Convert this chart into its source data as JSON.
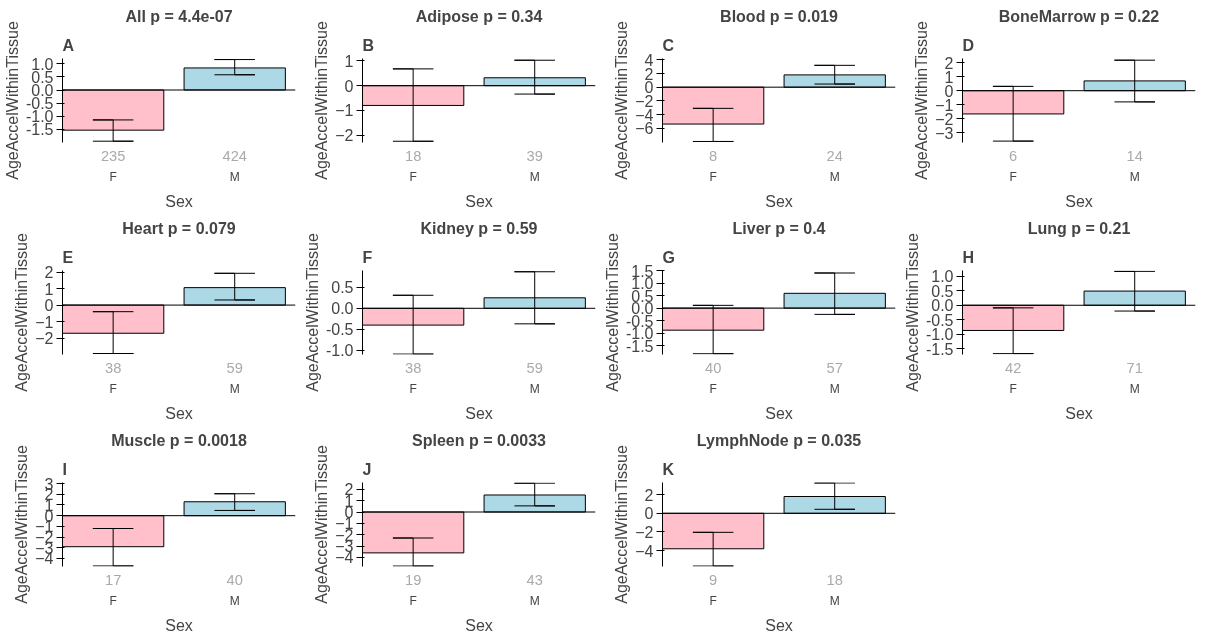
{
  "chart_data": [
    {
      "type": "bar",
      "title": "All p = 4.4e-07",
      "xlabel": "Sex",
      "ylabel": "AgeAccelWithinTissue",
      "categories": [
        "F",
        "M"
      ],
      "values": [
        -1.53,
        0.84
      ],
      "colors": [
        "#ffc0cb",
        "#add8e6"
      ],
      "errors": [
        [
          -1.95,
          -1.14
        ],
        [
          0.58,
          1.16
        ]
      ],
      "ylim": [
        -2.0,
        1.2
      ],
      "yticks": [
        {
          "value": -1.5,
          "label": "-1.5"
        },
        {
          "value": -1,
          "label": "-1.0"
        },
        {
          "value": -0.5,
          "label": "-0.5"
        },
        {
          "value": 0,
          "label": "0.0"
        },
        {
          "value": 0.5,
          "label": "0.5"
        },
        {
          "value": 1,
          "label": "1.0"
        }
      ],
      "ref_lines": [
        {
          "axis": "y",
          "value": 0
        }
      ],
      "annotations": [
        "A",
        "235",
        "424"
      ]
    },
    {
      "type": "bar",
      "title": "Adipose p = 0.34",
      "xlabel": "Sex",
      "ylabel": "AgeAccelWithinTissue",
      "categories": [
        "F",
        "M"
      ],
      "values": [
        -0.8,
        0.32
      ],
      "colors": [
        "#ffc0cb",
        "#add8e6"
      ],
      "errors": [
        [
          -2.25,
          0.68
        ],
        [
          -0.34,
          1.03
        ]
      ],
      "ylim": [
        -2.3,
        1.1
      ],
      "yticks": [
        -2,
        -1,
        0,
        1
      ],
      "ref_lines": [
        {
          "axis": "y",
          "value": 0
        }
      ],
      "annotations": [
        "B",
        "18",
        "39"
      ]
    },
    {
      "type": "bar",
      "title": "Blood p = 0.019",
      "xlabel": "Sex",
      "ylabel": "AgeAccelWithinTissue",
      "categories": [
        "F",
        "M"
      ],
      "values": [
        -5.4,
        1.8
      ],
      "colors": [
        "#ffc0cb",
        "#add8e6"
      ],
      "errors": [
        [
          -7.95,
          -3.1
        ],
        [
          0.46,
          3.2
        ]
      ],
      "ylim": [
        -8.1,
        4.2
      ],
      "yticks": [
        -6,
        -4,
        -2,
        0,
        2,
        4
      ],
      "ref_lines": [
        {
          "axis": "y",
          "value": 0
        }
      ],
      "annotations": [
        "C",
        "8",
        "24"
      ]
    },
    {
      "type": "bar",
      "title": "BoneMarrow p = 0.22",
      "xlabel": "Sex",
      "ylabel": "AgeAccelWithinTissue",
      "categories": [
        "F",
        "M"
      ],
      "values": [
        -1.66,
        0.7
      ],
      "colors": [
        "#ffc0cb",
        "#add8e6"
      ],
      "errors": [
        [
          -3.6,
          0.31
        ],
        [
          -0.8,
          2.18
        ]
      ],
      "ylim": [
        -3.7,
        2.3
      ],
      "yticks": [
        -3,
        -2,
        -1,
        0,
        1,
        2
      ],
      "ref_lines": [
        {
          "axis": "y",
          "value": 0
        }
      ],
      "annotations": [
        "D",
        "6",
        "14"
      ]
    },
    {
      "type": "bar",
      "title": "Heart p = 0.079",
      "xlabel": "Sex",
      "ylabel": "AgeAccelWithinTissue",
      "categories": [
        "F",
        "M"
      ],
      "values": [
        -1.71,
        1.06
      ],
      "colors": [
        "#ffc0cb",
        "#add8e6"
      ],
      "errors": [
        [
          -2.94,
          -0.4
        ],
        [
          0.31,
          1.93
        ]
      ],
      "ylim": [
        -3.0,
        2.1
      ],
      "yticks": [
        -2,
        -1,
        0,
        1,
        2
      ],
      "ref_lines": [
        {
          "axis": "y",
          "value": 0
        }
      ],
      "annotations": [
        "E",
        "38",
        "59"
      ]
    },
    {
      "type": "bar",
      "title": "Kidney p = 0.59",
      "xlabel": "Sex",
      "ylabel": "AgeAccelWithinTissue",
      "categories": [
        "F",
        "M"
      ],
      "values": [
        -0.4,
        0.25
      ],
      "colors": [
        "#ffc0cb",
        "#add8e6"
      ],
      "errors": [
        [
          -1.09,
          0.31
        ],
        [
          -0.37,
          0.87
        ]
      ],
      "ylim": [
        -1.1,
        0.9
      ],
      "yticks": [
        {
          "value": -1,
          "label": "-1.0"
        },
        {
          "value": -0.5,
          "label": "-0.5"
        },
        {
          "value": 0,
          "label": "0.0"
        },
        {
          "value": 0.5,
          "label": "0.5"
        }
      ],
      "ref_lines": [
        {
          "axis": "y",
          "value": 0
        }
      ],
      "annotations": [
        "F",
        "38",
        "59"
      ]
    },
    {
      "type": "bar",
      "title": "Liver p = 0.4",
      "xlabel": "Sex",
      "ylabel": "AgeAccelWithinTissue",
      "categories": [
        "F",
        "M"
      ],
      "values": [
        -0.88,
        0.59
      ],
      "colors": [
        "#ffc0cb",
        "#add8e6"
      ],
      "errors": [
        [
          -1.82,
          0.11
        ],
        [
          -0.25,
          1.4
        ]
      ],
      "ylim": [
        -1.85,
        1.5
      ],
      "yticks": [
        {
          "value": -1.5,
          "label": "-1.5"
        },
        {
          "value": -1,
          "label": "-1.0"
        },
        {
          "value": -0.5,
          "label": "-0.5"
        },
        {
          "value": 0,
          "label": "0.0"
        },
        {
          "value": 0.5,
          "label": "0.5"
        },
        {
          "value": 1,
          "label": "1.0"
        },
        {
          "value": 1.5,
          "label": "1.5"
        }
      ],
      "ref_lines": [
        {
          "axis": "y",
          "value": 0
        }
      ],
      "annotations": [
        "G",
        "40",
        "57"
      ]
    },
    {
      "type": "bar",
      "title": "Lung p = 0.21",
      "xlabel": "Sex",
      "ylabel": "AgeAccelWithinTissue",
      "categories": [
        "F",
        "M"
      ],
      "values": [
        -0.87,
        0.49
      ],
      "colors": [
        "#ffc0cb",
        "#add8e6"
      ],
      "errors": [
        [
          -1.67,
          -0.09
        ],
        [
          -0.2,
          1.17
        ]
      ],
      "ylim": [
        -1.7,
        1.2
      ],
      "yticks": [
        {
          "value": -1.5,
          "label": "-1.5"
        },
        {
          "value": -1,
          "label": "-1.0"
        },
        {
          "value": -0.5,
          "label": "-0.5"
        },
        {
          "value": 0,
          "label": "0.0"
        },
        {
          "value": 0.5,
          "label": "0.5"
        },
        {
          "value": 1,
          "label": "1.0"
        }
      ],
      "ref_lines": [
        {
          "axis": "y",
          "value": 0
        }
      ],
      "annotations": [
        "H",
        "42",
        "71"
      ]
    },
    {
      "type": "bar",
      "title": "Muscle p = 0.0018",
      "xlabel": "Sex",
      "ylabel": "AgeAccelWithinTissue",
      "categories": [
        "F",
        "M"
      ],
      "values": [
        -2.9,
        1.3
      ],
      "colors": [
        "#ffc0cb",
        "#add8e6"
      ],
      "errors": [
        [
          -4.7,
          -1.2
        ],
        [
          0.49,
          2.05
        ]
      ],
      "ylim": [
        -4.75,
        3.1
      ],
      "yticks": [
        -4,
        -3,
        -2,
        -1,
        0,
        1,
        2,
        3
      ],
      "ref_lines": [
        {
          "axis": "y",
          "value": 0
        }
      ],
      "annotations": [
        "I",
        "17",
        "40"
      ]
    },
    {
      "type": "bar",
      "title": "Spleen p = 0.0033",
      "xlabel": "Sex",
      "ylabel": "AgeAccelWithinTissue",
      "categories": [
        "F",
        "M"
      ],
      "values": [
        -3.6,
        1.5
      ],
      "colors": [
        "#ffc0cb",
        "#add8e6"
      ],
      "errors": [
        [
          -4.76,
          -2.29
        ],
        [
          0.54,
          2.54
        ]
      ],
      "ylim": [
        -4.8,
        2.6
      ],
      "yticks": [
        -4,
        -3,
        -2,
        -1,
        0,
        1,
        2
      ],
      "ref_lines": [
        {
          "axis": "y",
          "value": 0
        }
      ],
      "annotations": [
        "J",
        "19",
        "43"
      ]
    },
    {
      "type": "bar",
      "title": "LymphNode p = 0.035",
      "xlabel": "Sex",
      "ylabel": "AgeAccelWithinTissue",
      "categories": [
        "F",
        "M"
      ],
      "values": [
        -3.8,
        1.8
      ],
      "colors": [
        "#ffc0cb",
        "#add8e6"
      ],
      "errors": [
        [
          -5.65,
          -2.04
        ],
        [
          0.43,
          3.25
        ]
      ],
      "ylim": [
        -5.7,
        3.3
      ],
      "yticks": [
        -4,
        -2,
        0,
        2
      ],
      "ref_lines": [
        {
          "axis": "y",
          "value": 0
        }
      ],
      "annotations": [
        "K",
        "9",
        "18"
      ]
    }
  ]
}
